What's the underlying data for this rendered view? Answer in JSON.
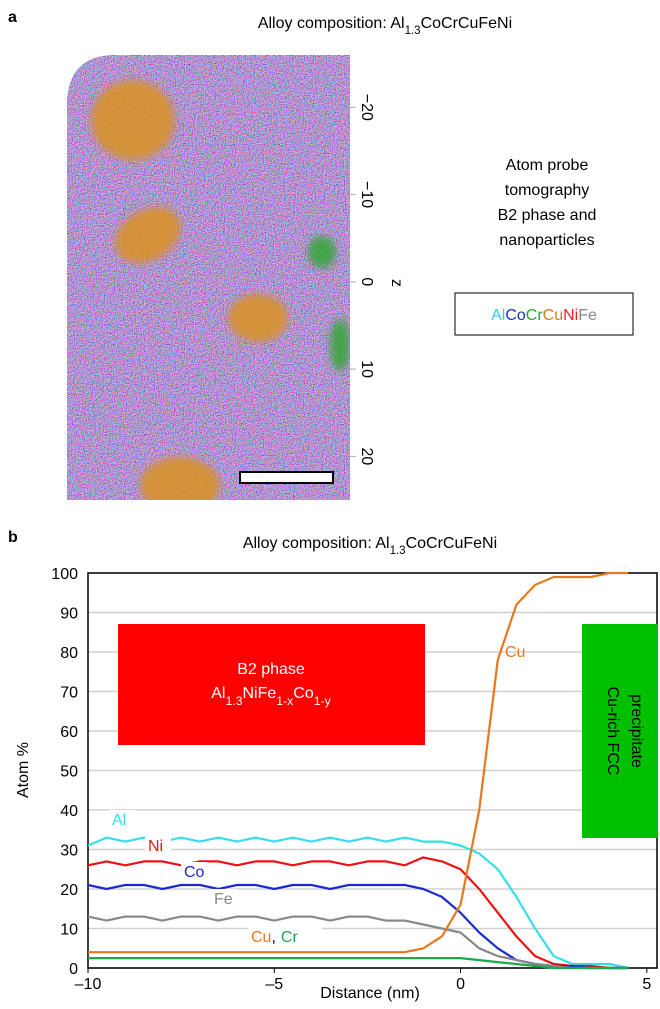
{
  "panel_a": {
    "label": "a",
    "title_parts": [
      "Alloy composition: Al",
      "1.3",
      "CoCrCuFeNi"
    ],
    "axis_label": "z",
    "zlim": [
      -26,
      25
    ],
    "zticks": [
      {
        "value": -20,
        "label": "−20"
      },
      {
        "value": -10,
        "label": "−10"
      },
      0,
      10,
      20
    ],
    "side_text": [
      "Atom probe",
      "tomography",
      "B2 phase and",
      "nanoparticles"
    ],
    "legend": [
      {
        "text": "Al",
        "color": "#33ccee"
      },
      {
        "text": "Co",
        "color": "#1a33cc"
      },
      {
        "text": "Cr",
        "color": "#22aa22"
      },
      {
        "text": "Cu",
        "color": "#e07a1a"
      },
      {
        "text": "Ni",
        "color": "#ee2222"
      },
      {
        "text": "Fe",
        "color": "#888888"
      }
    ]
  },
  "chart_data": {
    "type": "line",
    "label": "b",
    "title_parts": [
      "Alloy composition: Al",
      "1.3",
      "CoCrCuFeNi"
    ],
    "x_label": "Distance (nm)",
    "y_label": "Atom %",
    "xlim": [
      -10,
      5.3
    ],
    "ylim": [
      0,
      100
    ],
    "xticks": [
      {
        "value": -10,
        "label": "–10"
      },
      {
        "value": -5,
        "label": "–5"
      },
      0,
      5
    ],
    "yticks": [
      0,
      10,
      20,
      30,
      40,
      50,
      60,
      70,
      80,
      90,
      100
    ],
    "grid": true,
    "x": [
      -10,
      -9.5,
      -9,
      -8.5,
      -8,
      -7.5,
      -7,
      -6.5,
      -6,
      -5.5,
      -5,
      -4.5,
      -4,
      -3.5,
      -3,
      -2.5,
      -2,
      -1.5,
      -1,
      -0.5,
      0,
      0.5,
      1,
      1.5,
      2,
      2.5,
      3,
      3.5,
      4,
      4.5
    ],
    "series": [
      {
        "name": "Al",
        "color": "#33e0e8",
        "values": [
          31,
          33,
          32,
          33,
          32,
          33,
          32,
          33,
          32,
          33,
          32,
          33,
          32,
          33,
          32,
          33,
          32,
          33,
          32,
          32,
          31,
          29,
          25,
          18,
          10,
          3,
          1,
          1,
          1,
          0
        ]
      },
      {
        "name": "Ni",
        "color": "#ee1111",
        "values": [
          26,
          27,
          26,
          27,
          27,
          26,
          27,
          27,
          26,
          27,
          27,
          26,
          27,
          27,
          26,
          27,
          27,
          26,
          28,
          27,
          25,
          20,
          14,
          8,
          3,
          1,
          0.5,
          0.5,
          0,
          0
        ]
      },
      {
        "name": "Co",
        "color": "#1a2ad0",
        "values": [
          21,
          20,
          21,
          21,
          20,
          21,
          21,
          20,
          21,
          21,
          20,
          21,
          21,
          20,
          21,
          21,
          21,
          21,
          20,
          18,
          14,
          9,
          5,
          2,
          1,
          0.5,
          0.5,
          0,
          0,
          0
        ]
      },
      {
        "name": "Fe",
        "color": "#888888",
        "values": [
          13,
          12,
          13,
          13,
          12,
          13,
          13,
          12,
          13,
          13,
          12,
          13,
          13,
          12,
          13,
          13,
          12,
          12,
          11,
          10,
          9,
          5,
          3,
          2,
          1,
          0.5,
          0,
          0,
          0,
          0
        ]
      },
      {
        "name": "Cu",
        "color": "#e8781a",
        "values": [
          4,
          4,
          4,
          4,
          4,
          4,
          4,
          4,
          4,
          4,
          4,
          4,
          4,
          4,
          4,
          4,
          4,
          4,
          5,
          8,
          16,
          40,
          78,
          92,
          97,
          99,
          99,
          99,
          100,
          100
        ]
      },
      {
        "name": "Cr",
        "color": "#1aa84a",
        "values": [
          2.5,
          2.5,
          2.5,
          2.5,
          2.5,
          2.5,
          2.5,
          2.5,
          2.5,
          2.5,
          2.5,
          2.5,
          2.5,
          2.5,
          2.5,
          2.5,
          2.5,
          2.5,
          2.5,
          2.5,
          2.5,
          2,
          1.5,
          1,
          0.5,
          0,
          0,
          0,
          0,
          0
        ]
      }
    ],
    "annotations": {
      "b2": {
        "title": "B2 phase",
        "formula_parts": [
          "Al",
          "1.3",
          "NiFe",
          "1-x",
          "Co",
          "1-y"
        ]
      },
      "fcc": [
        "Cu-rich FCC",
        "precipitate"
      ],
      "separator": ","
    }
  }
}
